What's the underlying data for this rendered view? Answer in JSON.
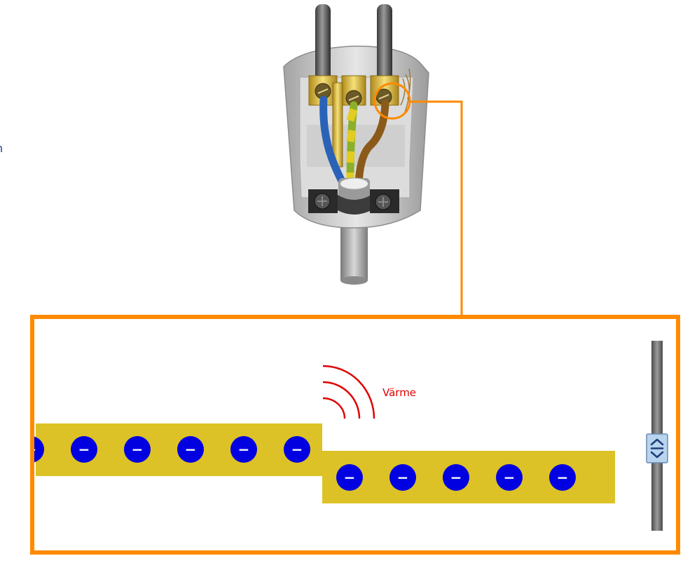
{
  "labels": {
    "heat": "Värme",
    "edge_marker": "n",
    "electron_symbol": "−"
  },
  "electrons": {
    "wide_section_count": 6,
    "narrow_section_count": 5
  },
  "slider": {
    "icon": "up-down-arrows-icon"
  },
  "colors": {
    "frame": "#ff8a00",
    "conductor": "#dcc226",
    "electron": "#0000e0",
    "heat": "#e00000",
    "slider_track": "#6e6e6e",
    "slider_thumb": "#b8d4ee"
  }
}
